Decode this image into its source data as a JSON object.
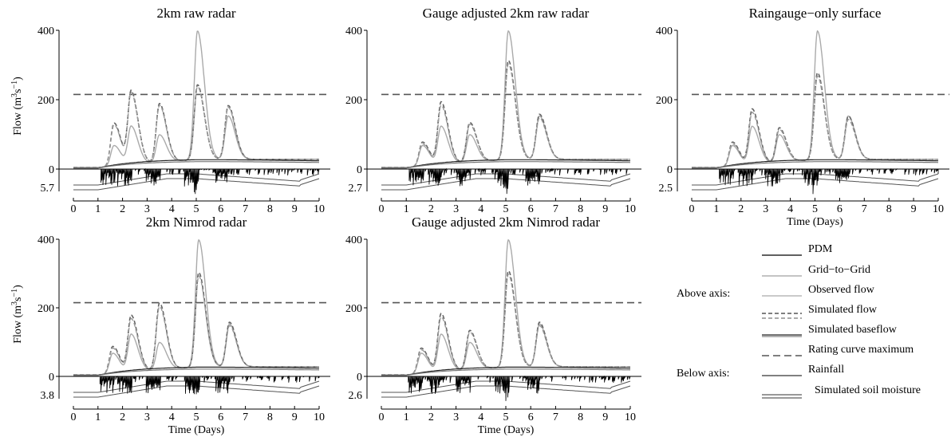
{
  "chart_data": [
    {
      "type": "line",
      "title": "2km raw radar",
      "ylabel": "Flow (m3s−1)",
      "xlabel": "",
      "xlim": [
        0,
        10
      ],
      "ylim": [
        0,
        400
      ],
      "x_ticks": [
        "0",
        "1",
        "2",
        "3",
        "4",
        "5",
        "6",
        "7",
        "8",
        "9",
        "10"
      ],
      "y_ticks": [
        "0",
        "200",
        "400"
      ],
      "rainfall_max": "5.7",
      "rating_curve_max": 215,
      "peaks": {
        "day": [
          1.65,
          2.35,
          3.5,
          5.05,
          6.3
        ],
        "observed": [
          60,
          110,
          80,
          370,
          125
        ],
        "pdm": [
          125,
          210,
          170,
          215,
          155
        ],
        "g2g": [
          120,
          205,
          165,
          210,
          150
        ]
      },
      "rain_scale": 1.0
    },
    {
      "type": "line",
      "title": "Gauge adjusted 2km raw radar",
      "ylabel": "",
      "xlabel": "",
      "xlim": [
        0,
        10
      ],
      "ylim": [
        0,
        400
      ],
      "x_ticks": [
        "0",
        "1",
        "2",
        "3",
        "4",
        "5",
        "6",
        "7",
        "8",
        "9",
        "10"
      ],
      "y_ticks": [
        "0",
        "200",
        "400"
      ],
      "rainfall_max": "2.7",
      "rating_curve_max": 215,
      "peaks": {
        "day": [
          1.65,
          2.4,
          3.55,
          5.1,
          6.35
        ],
        "observed": [
          60,
          110,
          80,
          370,
          125
        ],
        "pdm": [
          70,
          180,
          115,
          285,
          130
        ],
        "g2g": [
          65,
          170,
          110,
          275,
          120
        ]
      },
      "rain_scale": 1.0
    },
    {
      "type": "line",
      "title": "Raingauge−only surface",
      "ylabel": "",
      "xlabel": "Time (Days)",
      "xlim": [
        0,
        10
      ],
      "ylim": [
        0,
        400
      ],
      "x_ticks": [
        "0",
        "1",
        "2",
        "3",
        "4",
        "5",
        "6",
        "7",
        "8",
        "9",
        "10"
      ],
      "y_ticks": [
        "0",
        "200",
        "400"
      ],
      "rainfall_max": "2.5",
      "rating_curve_max": 215,
      "peaks": {
        "day": [
          1.65,
          2.45,
          3.55,
          5.1,
          6.35
        ],
        "observed": [
          60,
          110,
          80,
          370,
          125
        ],
        "pdm": [
          70,
          160,
          100,
          250,
          125
        ],
        "g2g": [
          65,
          150,
          95,
          240,
          115
        ]
      },
      "rain_scale": 1.0
    },
    {
      "type": "line",
      "title": "2km Nimrod radar",
      "ylabel": "Flow (m3s−1)",
      "xlabel": "Time (Days)",
      "xlim": [
        0,
        10
      ],
      "ylim": [
        0,
        400
      ],
      "x_ticks": [
        "0",
        "1",
        "2",
        "3",
        "4",
        "5",
        "6",
        "7",
        "8",
        "9",
        "10"
      ],
      "y_ticks": [
        "0",
        "200",
        "400"
      ],
      "rainfall_max": "3.8",
      "rating_curve_max": 215,
      "peaks": {
        "day": [
          1.6,
          2.35,
          3.5,
          5.1,
          6.35
        ],
        "observed": [
          60,
          110,
          80,
          370,
          125
        ],
        "pdm": [
          80,
          165,
          195,
          275,
          130
        ],
        "g2g": [
          75,
          155,
          185,
          265,
          120
        ]
      },
      "rain_scale": 1.0
    },
    {
      "type": "line",
      "title": "Gauge adjusted 2km Nimrod radar",
      "ylabel": "",
      "xlabel": "Time (Days)",
      "xlim": [
        0,
        10
      ],
      "ylim": [
        0,
        400
      ],
      "x_ticks": [
        "0",
        "1",
        "2",
        "3",
        "4",
        "5",
        "6",
        "7",
        "8",
        "9",
        "10"
      ],
      "y_ticks": [
        "0",
        "200",
        "400"
      ],
      "rainfall_max": "2.6",
      "rating_curve_max": 215,
      "peaks": {
        "day": [
          1.6,
          2.4,
          3.55,
          5.1,
          6.35
        ],
        "observed": [
          60,
          110,
          80,
          370,
          125
        ],
        "pdm": [
          75,
          170,
          115,
          280,
          130
        ],
        "g2g": [
          70,
          160,
          110,
          270,
          120
        ]
      },
      "rain_scale": 1.0
    }
  ],
  "legend": {
    "above_axis_label": "Above axis:",
    "below_axis_label": "Below axis:",
    "items": [
      {
        "label": "PDM",
        "style": "solid",
        "color": "#000000",
        "width": 1.2
      },
      {
        "label": "Grid−to−Grid",
        "style": "solid",
        "color": "#888888",
        "width": 1.0
      },
      {
        "label": "Observed flow",
        "style": "solid",
        "color": "#aaaaaa",
        "width": 1.3
      },
      {
        "label": "Simulated flow",
        "style": "dashed-pair",
        "color": "#555555",
        "width": 1.3
      },
      {
        "label": "Simulated baseflow",
        "style": "solid-pair",
        "color": "#333333",
        "width": 1.3
      },
      {
        "label": "Rating curve maximum",
        "style": "dashed",
        "color": "#555555",
        "width": 1.5
      },
      {
        "label": "Rainfall",
        "style": "solid",
        "color": "#000000",
        "width": 1.0
      },
      {
        "label": "Simulated soil moisture",
        "style": "double",
        "color": "#333333",
        "width": 1.0
      }
    ]
  },
  "colors": {
    "observed": "#aaaaaa",
    "pdm": "#666666",
    "g2g": "#999999",
    "rating": "#555555",
    "axis": "#000000"
  }
}
